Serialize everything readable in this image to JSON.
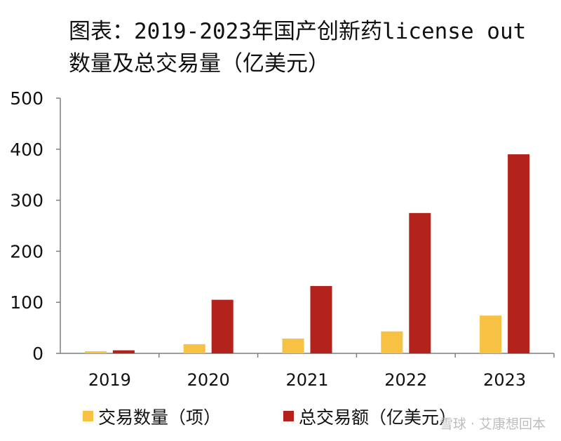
{
  "title_line1": "图表：2019-2023年国产创新药license out",
  "title_line2": "数量及总交易量（亿美元）",
  "watermark": "雪球 · 艾康想回本",
  "chart_data": {
    "type": "bar",
    "title": "图表：2019-2023年国产创新药license out数量及总交易量（亿美元）",
    "xlabel": "",
    "ylabel": "",
    "categories": [
      "2019",
      "2020",
      "2021",
      "2022",
      "2023"
    ],
    "ylim": [
      0,
      500
    ],
    "yticks": [
      0,
      100,
      200,
      300,
      400,
      500
    ],
    "grid": false,
    "legend_position": "bottom",
    "series": [
      {
        "name": "交易数量（项）",
        "color": "#F7C143",
        "values": [
          4,
          18,
          29,
          43,
          74
        ]
      },
      {
        "name": "总交易额（亿美元）",
        "color": "#B3221B",
        "values": [
          6,
          105,
          132,
          275,
          390
        ]
      }
    ]
  }
}
